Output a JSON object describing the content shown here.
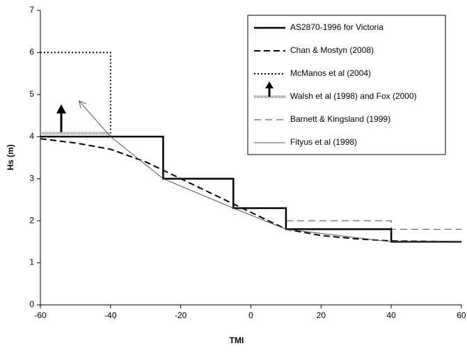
{
  "chart_data": {
    "type": "line",
    "x_label": "TMI",
    "y_label": "Hs (m)",
    "xlim": [
      -60,
      60
    ],
    "xticks": [
      -60,
      -40,
      -20,
      0,
      20,
      40,
      60
    ],
    "ylim": [
      0,
      7
    ],
    "yticks": [
      0,
      1,
      2,
      3,
      4,
      5,
      6,
      7
    ],
    "legend": "upper right",
    "series": [
      {
        "name": "AS2870-1996 for Victoria",
        "color": "#000000",
        "style": "solid",
        "width": 2.5,
        "x": [
          -60,
          -25,
          -25,
          -5,
          -5,
          10,
          10,
          40,
          40,
          60
        ],
        "values": [
          4,
          4,
          3,
          3,
          2.3,
          2.3,
          1.8,
          1.8,
          1.5,
          1.5
        ]
      },
      {
        "name": "Chan & Mostyn (2008)",
        "color": "#000000",
        "style": "dashed",
        "width": 2,
        "x": [
          -60,
          -50,
          -40,
          -30,
          -20,
          -10,
          0,
          10,
          20,
          30,
          40,
          50,
          60
        ],
        "values": [
          3.95,
          3.85,
          3.7,
          3.4,
          3.0,
          2.6,
          2.2,
          1.8,
          1.65,
          1.57,
          1.52,
          1.51,
          1.5
        ]
      },
      {
        "name": "McManos et al (2004)",
        "color": "#000000",
        "style": "dotted",
        "width": 2,
        "x": [
          -60,
          -40,
          -40
        ],
        "values": [
          6,
          6,
          4
        ]
      },
      {
        "name": "Walsh et al (1998) and Fox (2000)",
        "color": "#888888",
        "style": "hatched",
        "width": 4,
        "x": [
          -60,
          -40
        ],
        "values": [
          4.08,
          4.08
        ]
      },
      {
        "name": "Barnett & Kingsland (1999)",
        "color": "#000000",
        "style": "thin-dashed",
        "width": 0.8,
        "x": [
          10,
          40,
          40,
          60
        ],
        "values": [
          2,
          2,
          1.8,
          1.8
        ]
      },
      {
        "name": "Fityus et al (1998)",
        "color": "#555555",
        "style": "thin",
        "width": 1,
        "x": [
          -49,
          -40,
          -25,
          -5,
          10,
          40,
          60
        ],
        "values": [
          4.85,
          4,
          3,
          2.3,
          1.8,
          1.5,
          1.5
        ]
      }
    ]
  }
}
